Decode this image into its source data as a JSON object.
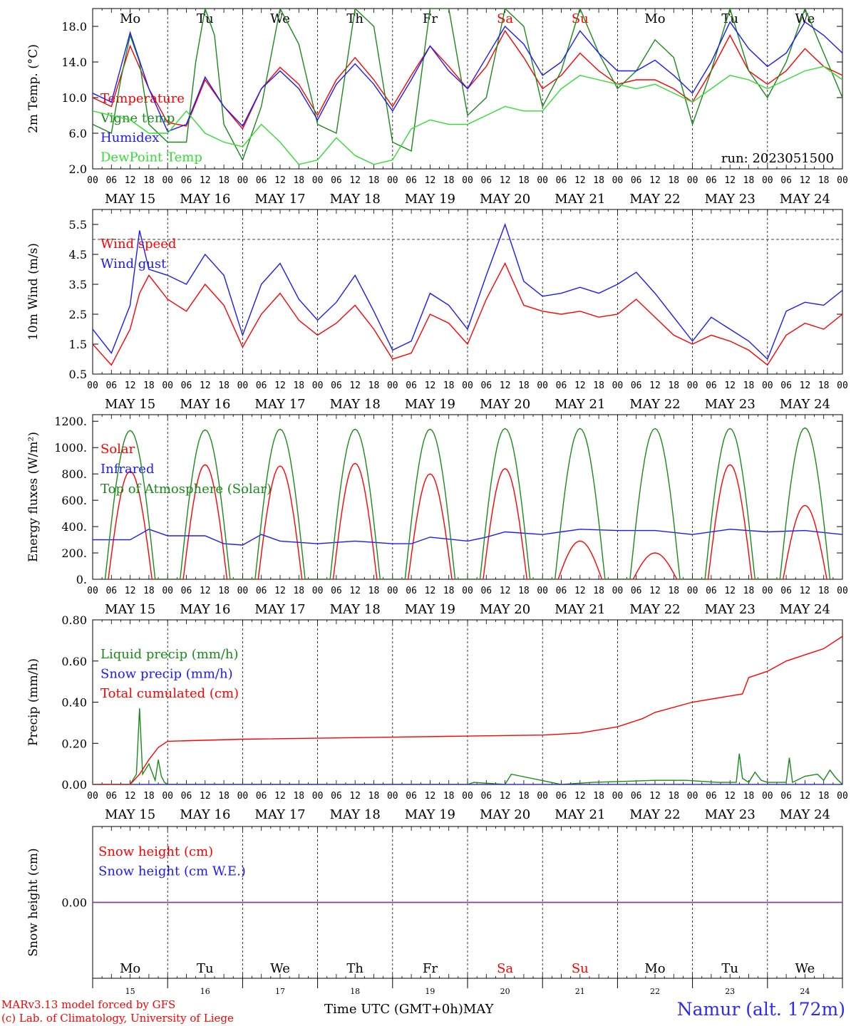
{
  "page": {
    "credit_line1": "MARv3.13 model forced by GFS",
    "credit_line2": "(c) Lab. of Climatology, University of Liege",
    "station": "Namur (alt. 172m)",
    "time_axis_label": "Time UTC (GMT+0h)MAY"
  },
  "colors": {
    "red": "#ff0000",
    "green": "#1a8a1a",
    "blue": "#1a1aff",
    "lightgreen": "#33dd33",
    "purple": "#8040a0",
    "weekend": "#ff0000",
    "weekday": "#000000"
  },
  "days": {
    "names": [
      "Mo",
      "Tu",
      "We",
      "Th",
      "Fr",
      "Sa",
      "Su",
      "Mo",
      "Tu",
      "We"
    ],
    "weekend_flags": [
      false,
      false,
      false,
      false,
      false,
      true,
      true,
      false,
      false,
      false
    ],
    "dates": [
      "MAY 15",
      "MAY 16",
      "MAY 17",
      "MAY 18",
      "MAY 19",
      "MAY 20",
      "MAY 21",
      "MAY 22",
      "MAY 23",
      "MAY 24"
    ],
    "numbers": [
      "15",
      "16",
      "17",
      "18",
      "19",
      "20",
      "21",
      "22",
      "23",
      "24"
    ],
    "hour_ticks": [
      "00",
      "06",
      "12",
      "18"
    ],
    "final_tick": "00"
  },
  "chart_data": [
    {
      "type": "line",
      "ylabel": "2m Temp. (°C)",
      "ylim": [
        2,
        20
      ],
      "yticks": [
        "2.0",
        "6.0",
        "10.0",
        "14.0",
        "18.0"
      ],
      "ytick_values": [
        2,
        6,
        10,
        14,
        18
      ],
      "annotation": "run: 2023051500",
      "x_unit": "hours since May 15 00 UTC",
      "series": [
        {
          "name": "Temperature",
          "color": "red",
          "x": [
            0,
            6,
            12,
            18,
            24,
            30,
            36,
            42,
            48,
            54,
            60,
            66,
            72,
            78,
            84,
            90,
            96,
            102,
            108,
            114,
            120,
            126,
            132,
            138,
            144,
            150,
            156,
            162,
            168,
            174,
            180,
            186,
            192,
            198,
            204,
            210,
            216,
            222,
            228,
            234,
            240
          ],
          "values": [
            10.0,
            9.0,
            15.8,
            11.0,
            7.2,
            6.8,
            12.0,
            9.0,
            6.5,
            11.0,
            13.4,
            11.5,
            8.0,
            12.0,
            14.5,
            12.0,
            9.0,
            12.5,
            15.8,
            13.5,
            11.0,
            13.5,
            17.5,
            14.5,
            11.0,
            12.5,
            15.0,
            13.0,
            11.5,
            12.0,
            12.0,
            11.0,
            9.5,
            13.0,
            17.0,
            13.0,
            11.5,
            13.0,
            15.5,
            13.5,
            12.5
          ]
        },
        {
          "name": "Vigne temp",
          "color": "green",
          "x": [
            0,
            6,
            9,
            12,
            15,
            18,
            24,
            30,
            33,
            36,
            39,
            42,
            48,
            54,
            60,
            66,
            72,
            78,
            84,
            90,
            96,
            102,
            108,
            114,
            120,
            126,
            132,
            138,
            144,
            150,
            156,
            162,
            168,
            174,
            180,
            186,
            192,
            198,
            204,
            210,
            216,
            222,
            228,
            234,
            240
          ],
          "values": [
            7.0,
            6.0,
            12.0,
            17.0,
            14.0,
            7.0,
            5.0,
            5.0,
            14.0,
            20.0,
            17.0,
            7.0,
            3.0,
            9.0,
            20.0,
            16.0,
            7.0,
            6.0,
            20.0,
            18.0,
            5.0,
            4.0,
            20.0,
            20.0,
            8.0,
            10.0,
            20.0,
            18.0,
            9.0,
            13.0,
            20.0,
            15.0,
            11.0,
            13.0,
            16.5,
            14.5,
            7.0,
            13.0,
            20.0,
            13.0,
            10.0,
            14.0,
            20.0,
            15.0,
            10.0
          ]
        },
        {
          "name": "Humidex",
          "color": "blue",
          "x": [
            0,
            6,
            12,
            18,
            24,
            30,
            36,
            42,
            48,
            54,
            60,
            66,
            72,
            78,
            84,
            90,
            96,
            102,
            108,
            114,
            120,
            126,
            132,
            138,
            144,
            150,
            156,
            162,
            168,
            174,
            180,
            186,
            192,
            198,
            204,
            210,
            216,
            222,
            228,
            234,
            240
          ],
          "values": [
            10.5,
            9.5,
            17.3,
            11.0,
            6.2,
            7.0,
            12.3,
            9.0,
            6.8,
            11.0,
            13.0,
            11.0,
            7.5,
            11.5,
            13.8,
            11.5,
            8.5,
            12.0,
            15.8,
            13.0,
            11.0,
            14.5,
            18.0,
            16.0,
            12.5,
            14.0,
            17.5,
            15.0,
            13.0,
            13.0,
            14.2,
            12.5,
            10.5,
            14.0,
            18.5,
            15.5,
            13.5,
            15.0,
            18.5,
            17.0,
            15.0
          ]
        },
        {
          "name": "DewPoint Temp",
          "color": "lightgreen",
          "x": [
            0,
            6,
            12,
            18,
            24,
            30,
            36,
            42,
            48,
            54,
            60,
            66,
            72,
            78,
            84,
            90,
            96,
            102,
            108,
            114,
            120,
            126,
            132,
            138,
            144,
            150,
            156,
            162,
            168,
            174,
            180,
            186,
            192,
            198,
            204,
            210,
            216,
            222,
            228,
            234,
            240
          ],
          "values": [
            8.5,
            8.0,
            7.5,
            6.0,
            6.0,
            8.5,
            6.0,
            5.0,
            4.5,
            7.0,
            5.0,
            2.5,
            3.0,
            5.5,
            3.5,
            2.5,
            3.0,
            6.5,
            7.5,
            7.0,
            7.0,
            8.0,
            9.0,
            8.5,
            8.5,
            11.0,
            12.5,
            12.0,
            11.5,
            11.0,
            11.5,
            10.5,
            9.5,
            11.0,
            12.5,
            12.0,
            11.0,
            12.0,
            13.0,
            13.5,
            12.0
          ]
        }
      ]
    },
    {
      "type": "line",
      "ylabel": "10m Wind (m/s)",
      "ylim": [
        0.5,
        6.0
      ],
      "yticks": [
        "0.5",
        "1.5",
        "2.5",
        "3.5",
        "4.5",
        "5.5"
      ],
      "ytick_values": [
        0.5,
        1.5,
        2.5,
        3.5,
        4.5,
        5.5
      ],
      "reference_line": 5.0,
      "x_unit": "hours since May 15 00 UTC",
      "series": [
        {
          "name": "Wind speed",
          "color": "red",
          "x": [
            0,
            6,
            12,
            15,
            18,
            24,
            30,
            36,
            42,
            48,
            54,
            60,
            66,
            72,
            78,
            84,
            90,
            96,
            102,
            108,
            114,
            120,
            126,
            132,
            138,
            144,
            150,
            156,
            162,
            168,
            174,
            180,
            186,
            192,
            198,
            204,
            210,
            216,
            222,
            228,
            234,
            240
          ],
          "values": [
            1.5,
            0.8,
            2.0,
            3.2,
            3.8,
            3.0,
            2.6,
            3.5,
            2.8,
            1.4,
            2.5,
            3.2,
            2.3,
            1.8,
            2.2,
            2.8,
            2.0,
            1.0,
            1.2,
            2.5,
            2.2,
            1.5,
            3.0,
            4.2,
            2.8,
            2.6,
            2.5,
            2.6,
            2.4,
            2.5,
            3.0,
            2.4,
            1.8,
            1.5,
            1.8,
            1.6,
            1.3,
            0.8,
            1.8,
            2.2,
            2.0,
            2.5
          ]
        },
        {
          "name": "Wind gust",
          "color": "blue",
          "x": [
            0,
            6,
            12,
            15,
            18,
            24,
            30,
            36,
            42,
            48,
            54,
            60,
            66,
            72,
            78,
            84,
            90,
            96,
            102,
            108,
            114,
            120,
            126,
            132,
            138,
            144,
            150,
            156,
            162,
            168,
            174,
            180,
            186,
            192,
            198,
            204,
            210,
            216,
            222,
            228,
            234,
            240
          ],
          "values": [
            2.0,
            1.2,
            2.8,
            5.3,
            4.0,
            3.8,
            3.5,
            4.5,
            3.8,
            1.8,
            3.5,
            4.2,
            3.0,
            2.3,
            2.9,
            3.8,
            2.6,
            1.3,
            1.6,
            3.2,
            2.8,
            2.0,
            3.8,
            5.5,
            3.6,
            3.1,
            3.2,
            3.4,
            3.2,
            3.5,
            3.9,
            3.2,
            2.4,
            1.6,
            2.4,
            2.0,
            1.6,
            1.0,
            2.6,
            2.9,
            2.8,
            3.3
          ]
        }
      ]
    },
    {
      "type": "line",
      "ylabel": "Energy fluxes (W/m²)",
      "ylim": [
        0,
        1250
      ],
      "yticks": [
        "0.",
        "200.",
        "400.",
        "600.",
        "800.",
        "1000.",
        "1200."
      ],
      "ytick_values": [
        0,
        200,
        400,
        600,
        800,
        1000,
        1200
      ],
      "x_unit": "hours since May 15 00 UTC",
      "series": [
        {
          "name": "Solar",
          "color": "red",
          "daily_peak": [
            820,
            870,
            860,
            880,
            800,
            840,
            290,
            200,
            870,
            560
          ],
          "day_start_hour": 5,
          "day_end_hour": 19
        },
        {
          "name": "Infrared",
          "color": "blue",
          "x": [
            0,
            12,
            18,
            24,
            36,
            42,
            48,
            54,
            60,
            72,
            84,
            96,
            102,
            108,
            120,
            126,
            132,
            144,
            150,
            156,
            168,
            180,
            192,
            204,
            216,
            228,
            240
          ],
          "values": [
            300,
            300,
            380,
            330,
            330,
            270,
            260,
            340,
            290,
            270,
            290,
            270,
            270,
            320,
            290,
            320,
            360,
            340,
            360,
            380,
            370,
            370,
            340,
            380,
            360,
            370,
            340
          ]
        },
        {
          "name": "Top of Atmosphere (Solar)",
          "color": "green",
          "daily_peak": [
            1130,
            1135,
            1140,
            1140,
            1140,
            1145,
            1145,
            1145,
            1145,
            1150
          ],
          "day_start_hour": 4,
          "day_end_hour": 20
        }
      ]
    },
    {
      "type": "line",
      "ylabel": "Precip (mm/h)",
      "ylim": [
        0,
        0.8
      ],
      "yticks": [
        "0.00",
        "0.20",
        "0.40",
        "0.60",
        "0.80"
      ],
      "ytick_values": [
        0,
        0.2,
        0.4,
        0.6,
        0.8
      ],
      "x_unit": "hours since May 15 00 UTC",
      "series": [
        {
          "name": "Liquid precip (mm/h)",
          "color": "green",
          "x": [
            0,
            12,
            14,
            15,
            16,
            18,
            20,
            21,
            22,
            23,
            24,
            48,
            96,
            120,
            122,
            132,
            134,
            150,
            160,
            180,
            190,
            200,
            206,
            207,
            208,
            210,
            212,
            214,
            216,
            222,
            223,
            224,
            228,
            232,
            234,
            236,
            238,
            240
          ],
          "values": [
            0,
            0,
            0.05,
            0.37,
            0.05,
            0.1,
            0.02,
            0.12,
            0.04,
            0.01,
            0,
            0,
            0,
            0,
            0.01,
            0,
            0.05,
            0,
            0.01,
            0.02,
            0.02,
            0.01,
            0.01,
            0.15,
            0.03,
            0.01,
            0.06,
            0.02,
            0.01,
            0.01,
            0.13,
            0.01,
            0.04,
            0.05,
            0.02,
            0.07,
            0.03,
            0
          ]
        },
        {
          "name": "Snow precip (mm/h)",
          "color": "blue",
          "x": [
            0,
            240
          ],
          "values": [
            0,
            0
          ]
        },
        {
          "name": "Total cumulated (cm)",
          "color": "red",
          "x": [
            0,
            12,
            15,
            18,
            21,
            24,
            48,
            96,
            120,
            144,
            156,
            168,
            176,
            180,
            192,
            204,
            208,
            210,
            216,
            222,
            228,
            234,
            240
          ],
          "values": [
            0,
            0,
            0.05,
            0.12,
            0.18,
            0.21,
            0.22,
            0.23,
            0.235,
            0.24,
            0.25,
            0.28,
            0.32,
            0.35,
            0.4,
            0.43,
            0.44,
            0.52,
            0.55,
            0.6,
            0.63,
            0.66,
            0.72
          ]
        }
      ]
    },
    {
      "type": "line",
      "ylabel": "Snow height (cm)",
      "ylim": [
        -1,
        1
      ],
      "yticks": [
        "0.00"
      ],
      "ytick_values": [
        0
      ],
      "x_unit": "hours since May 15 00 UTC",
      "series": [
        {
          "name": "Snow height (cm)",
          "color": "red",
          "x": [
            0,
            240
          ],
          "values": [
            0,
            0
          ]
        },
        {
          "name": "Snow height (cm W.E.)",
          "color": "blue",
          "x": [
            0,
            240
          ],
          "values": [
            0,
            0
          ]
        }
      ]
    }
  ]
}
